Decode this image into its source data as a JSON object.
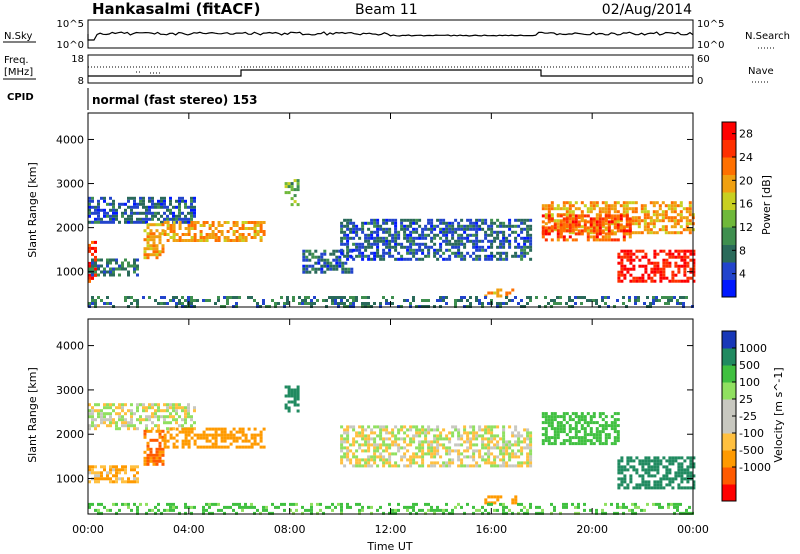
{
  "header": {
    "station": "Hankasalmi (fitACF)",
    "beam": "Beam 11",
    "date": "02/Aug/2014"
  },
  "noise_panel": {
    "left_label": "N.Sky",
    "left_ticks": [
      "10^5",
      "10^0"
    ],
    "right_label": "N.Search",
    "right_ticks": [
      "10^5",
      "10^0"
    ]
  },
  "freq_panel": {
    "left_label_1": "Freq.",
    "left_label_2": "[MHz]",
    "left_ticks": [
      "18",
      "8"
    ],
    "right_label": "Nave",
    "right_ticks": [
      "60",
      "0"
    ]
  },
  "cpid": {
    "label": "CPID",
    "mode_text": "normal (fast stereo) 153"
  },
  "x_axis": {
    "label": "Time UT",
    "ticks": [
      "00:00",
      "04:00",
      "08:00",
      "12:00",
      "16:00",
      "20:00",
      "00:00"
    ]
  },
  "colors": {
    "power_scale": [
      "#0018ff",
      "#2244cc",
      "#2a6a5a",
      "#3f8f4f",
      "#6fb83a",
      "#c8d020",
      "#f0a010",
      "#ff7000",
      "#ff3000",
      "#ff0000"
    ],
    "velocity_scale": [
      "#ff0000",
      "#ff5a00",
      "#ff9a00",
      "#ffc040",
      "#c8c8c0",
      "#c8c8c0",
      "#90e060",
      "#40c040",
      "#208a60",
      "#1838b8"
    ]
  },
  "chart_data": [
    {
      "type": "heatmap",
      "name": "power",
      "xlabel": "Time UT",
      "ylabel": "Slant Range [km]",
      "xlim": [
        0,
        24
      ],
      "ylim": [
        200,
        4600
      ],
      "y_ticks": [
        "1000",
        "2000",
        "3000",
        "4000"
      ],
      "colorbar_label": "Power [dB]",
      "colorbar_ticks": [
        "4",
        "8",
        "12",
        "16",
        "20",
        "24",
        "28"
      ],
      "colorbar_range": [
        0,
        30
      ],
      "regions": [
        {
          "t0": 0.0,
          "t1": 4.2,
          "r0": 2100,
          "r1": 2700,
          "level": 6
        },
        {
          "t0": 2.2,
          "t1": 3.0,
          "r0": 1300,
          "r1": 2100,
          "level": 20
        },
        {
          "t0": 3.0,
          "t1": 7.0,
          "r0": 1700,
          "r1": 2150,
          "level": 20
        },
        {
          "t0": 0.0,
          "t1": 0.3,
          "r0": 800,
          "r1": 1700,
          "level": 26
        },
        {
          "t0": 0.0,
          "t1": 2.0,
          "r0": 900,
          "r1": 1300,
          "level": 8
        },
        {
          "t0": 7.8,
          "t1": 8.3,
          "r0": 2500,
          "r1": 3100,
          "level": 12
        },
        {
          "t0": 8.5,
          "t1": 10.5,
          "r0": 1000,
          "r1": 1500,
          "level": 6
        },
        {
          "t0": 10.0,
          "t1": 17.5,
          "r0": 1300,
          "r1": 2200,
          "level": 6
        },
        {
          "t0": 15.6,
          "t1": 17.0,
          "r0": 440,
          "r1": 620,
          "level": 20
        },
        {
          "t0": 18.0,
          "t1": 24.0,
          "r0": 1900,
          "r1": 2600,
          "level": 20
        },
        {
          "t0": 18.0,
          "t1": 21.5,
          "r0": 1700,
          "r1": 2300,
          "level": 24
        },
        {
          "t0": 21.0,
          "t1": 24.0,
          "r0": 800,
          "r1": 1500,
          "level": 28
        },
        {
          "t0": 0.0,
          "t1": 24.0,
          "r0": 200,
          "r1": 450,
          "level": 8
        }
      ]
    },
    {
      "type": "heatmap",
      "name": "velocity",
      "xlabel": "Time UT",
      "ylabel": "Slant Range [km]",
      "xlim": [
        0,
        24
      ],
      "ylim": [
        200,
        4600
      ],
      "y_ticks": [
        "1000",
        "2000",
        "3000",
        "4000"
      ],
      "colorbar_label": "Velocity [m s^-1]",
      "colorbar_ticks": [
        "1000",
        "500",
        "100",
        "25",
        "-25",
        "-100",
        "-500",
        "-1000"
      ],
      "regions": [
        {
          "t0": 0.0,
          "t1": 4.2,
          "r0": 2100,
          "r1": 2700,
          "v": 0
        },
        {
          "t0": 2.2,
          "t1": 3.0,
          "r0": 1300,
          "r1": 2100,
          "v": -500
        },
        {
          "t0": 3.0,
          "t1": 7.0,
          "r0": 1700,
          "r1": 2150,
          "v": -300
        },
        {
          "t0": 0.0,
          "t1": 2.0,
          "r0": 900,
          "r1": 1300,
          "v": -100
        },
        {
          "t0": 7.8,
          "t1": 8.3,
          "r0": 2500,
          "r1": 3100,
          "v": 900
        },
        {
          "t0": 10.0,
          "t1": 17.5,
          "r0": 1300,
          "r1": 2200,
          "v": 0
        },
        {
          "t0": 15.6,
          "t1": 17.0,
          "r0": 440,
          "r1": 620,
          "v": -200
        },
        {
          "t0": 18.0,
          "t1": 21.0,
          "r0": 1800,
          "r1": 2500,
          "v": 300
        },
        {
          "t0": 21.0,
          "t1": 24.0,
          "r0": 800,
          "r1": 1500,
          "v": 600
        },
        {
          "t0": 0.0,
          "t1": 24.0,
          "r0": 200,
          "r1": 450,
          "v": 150
        }
      ]
    }
  ]
}
